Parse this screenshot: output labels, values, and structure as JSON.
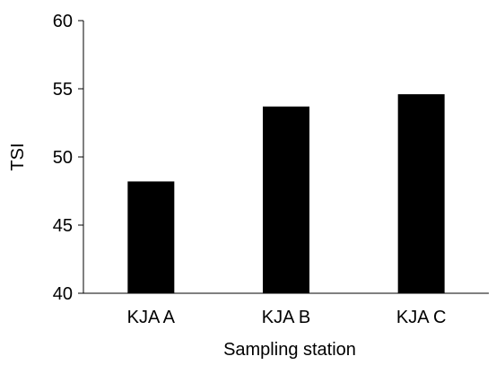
{
  "chart_data": {
    "type": "bar",
    "title": "",
    "xlabel": "Sampling station",
    "ylabel": "TSI",
    "categories": [
      "KJA A",
      "KJA B",
      "KJA C"
    ],
    "values": [
      48.2,
      53.7,
      54.6
    ],
    "ylim": [
      40,
      60
    ],
    "yticks": [
      40,
      45,
      50,
      55,
      60
    ],
    "bar_color": "#000000",
    "grid": false,
    "legend": "none"
  }
}
